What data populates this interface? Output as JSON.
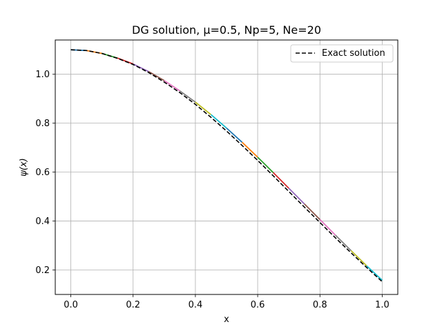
{
  "chart_data": {
    "type": "line",
    "title": "DG solution, μ=0.5, Np=5, Ne=20",
    "xlabel": "x",
    "ylabel": "ψ(x)",
    "xlim": [
      -0.05,
      1.05
    ],
    "ylim": [
      0.1,
      1.14
    ],
    "xticks": [
      0.0,
      0.2,
      0.4,
      0.6,
      0.8,
      1.0
    ],
    "xtick_labels": [
      "0.0",
      "0.2",
      "0.4",
      "0.6",
      "0.8",
      "1.0"
    ],
    "yticks": [
      0.2,
      0.4,
      0.6,
      0.8,
      1.0
    ],
    "ytick_labels": [
      "0.2",
      "0.4",
      "0.6",
      "0.8",
      "1.0"
    ],
    "grid": true,
    "legend": {
      "position": "upper right",
      "entries": [
        "Exact solution"
      ]
    },
    "element_colors": [
      "#1f77b4",
      "#ff7f0e",
      "#2ca02c",
      "#d62728",
      "#9467bd",
      "#8c564b",
      "#e377c2",
      "#7f7f7f",
      "#bcbd22",
      "#17becf"
    ],
    "exact_color": "#000000",
    "exact": {
      "x": [
        0.0,
        0.05,
        0.1,
        0.15,
        0.2,
        0.25,
        0.3,
        0.35,
        0.4,
        0.45,
        0.5,
        0.55,
        0.6,
        0.65,
        0.7,
        0.75,
        0.8,
        0.85,
        0.9,
        0.95,
        1.0
      ],
      "y": [
        1.1,
        1.097,
        1.085,
        1.065,
        1.04,
        1.007,
        0.968,
        0.925,
        0.877,
        0.824,
        0.768,
        0.709,
        0.648,
        0.585,
        0.521,
        0.457,
        0.394,
        0.331,
        0.27,
        0.21,
        0.152
      ]
    },
    "dg_elements": [
      {
        "x": [
          0.0,
          0.05
        ],
        "y": [
          1.1,
          1.097
        ]
      },
      {
        "x": [
          0.05,
          0.1
        ],
        "y": [
          1.097,
          1.085
        ]
      },
      {
        "x": [
          0.1,
          0.15
        ],
        "y": [
          1.085,
          1.066
        ]
      },
      {
        "x": [
          0.15,
          0.2
        ],
        "y": [
          1.066,
          1.042
        ]
      },
      {
        "x": [
          0.2,
          0.25
        ],
        "y": [
          1.042,
          1.011
        ]
      },
      {
        "x": [
          0.25,
          0.3
        ],
        "y": [
          1.011,
          0.974
        ]
      },
      {
        "x": [
          0.3,
          0.35
        ],
        "y": [
          0.974,
          0.932
        ]
      },
      {
        "x": [
          0.35,
          0.4
        ],
        "y": [
          0.932,
          0.886
        ]
      },
      {
        "x": [
          0.4,
          0.45
        ],
        "y": [
          0.886,
          0.835
        ]
      },
      {
        "x": [
          0.45,
          0.5
        ],
        "y": [
          0.835,
          0.78
        ]
      },
      {
        "x": [
          0.5,
          0.55
        ],
        "y": [
          0.78,
          0.722
        ]
      },
      {
        "x": [
          0.55,
          0.6
        ],
        "y": [
          0.722,
          0.661
        ]
      },
      {
        "x": [
          0.6,
          0.65
        ],
        "y": [
          0.661,
          0.598
        ]
      },
      {
        "x": [
          0.65,
          0.7
        ],
        "y": [
          0.598,
          0.534
        ]
      },
      {
        "x": [
          0.7,
          0.75
        ],
        "y": [
          0.534,
          0.47
        ]
      },
      {
        "x": [
          0.75,
          0.8
        ],
        "y": [
          0.47,
          0.406
        ]
      },
      {
        "x": [
          0.8,
          0.85
        ],
        "y": [
          0.406,
          0.342
        ]
      },
      {
        "x": [
          0.85,
          0.9
        ],
        "y": [
          0.342,
          0.279
        ]
      },
      {
        "x": [
          0.9,
          0.95
        ],
        "y": [
          0.279,
          0.217
        ]
      },
      {
        "x": [
          0.95,
          1.0
        ],
        "y": [
          0.217,
          0.158
        ]
      }
    ]
  }
}
